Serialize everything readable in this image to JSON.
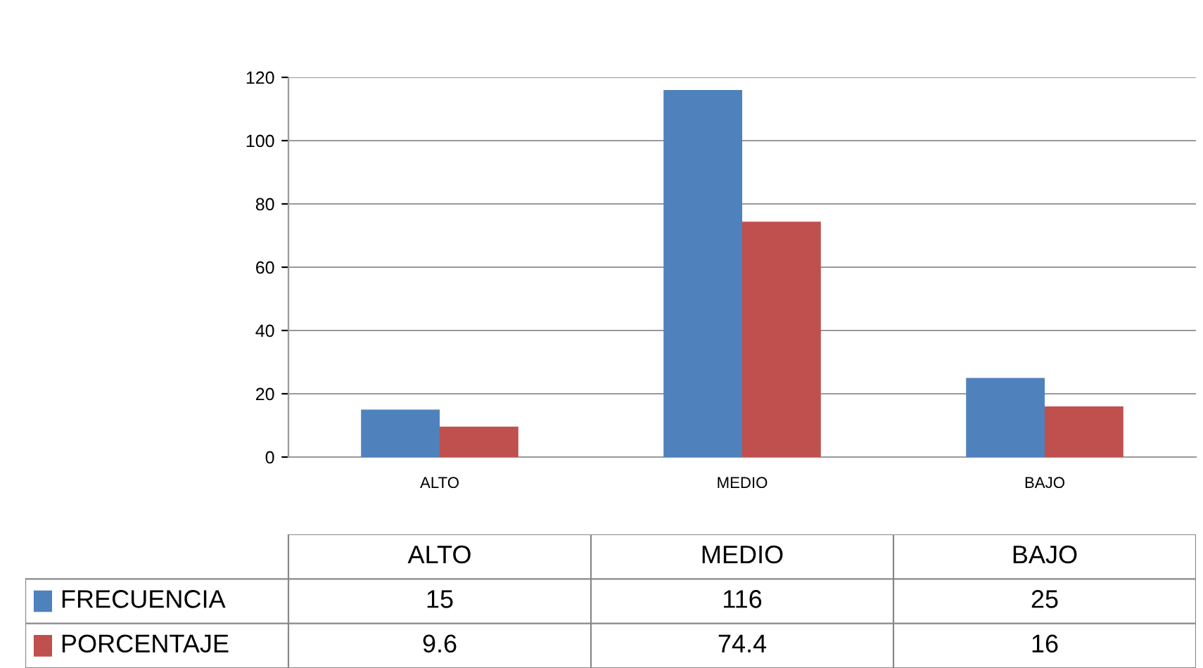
{
  "chart_data": {
    "type": "bar",
    "categories": [
      "ALTO",
      "MEDIO",
      "BAJO"
    ],
    "series": [
      {
        "name": "FRECUENCIA",
        "color": "#4f81bd",
        "values": [
          15,
          116,
          25
        ]
      },
      {
        "name": "PORCENTAJE",
        "color": "#c0504d",
        "values": [
          9.6,
          74.4,
          16
        ]
      }
    ],
    "ylim": [
      0,
      120
    ],
    "yticks": [
      0,
      20,
      40,
      60,
      80,
      100,
      120
    ],
    "grid": "y",
    "data_labels": true,
    "legend": "bottom"
  }
}
